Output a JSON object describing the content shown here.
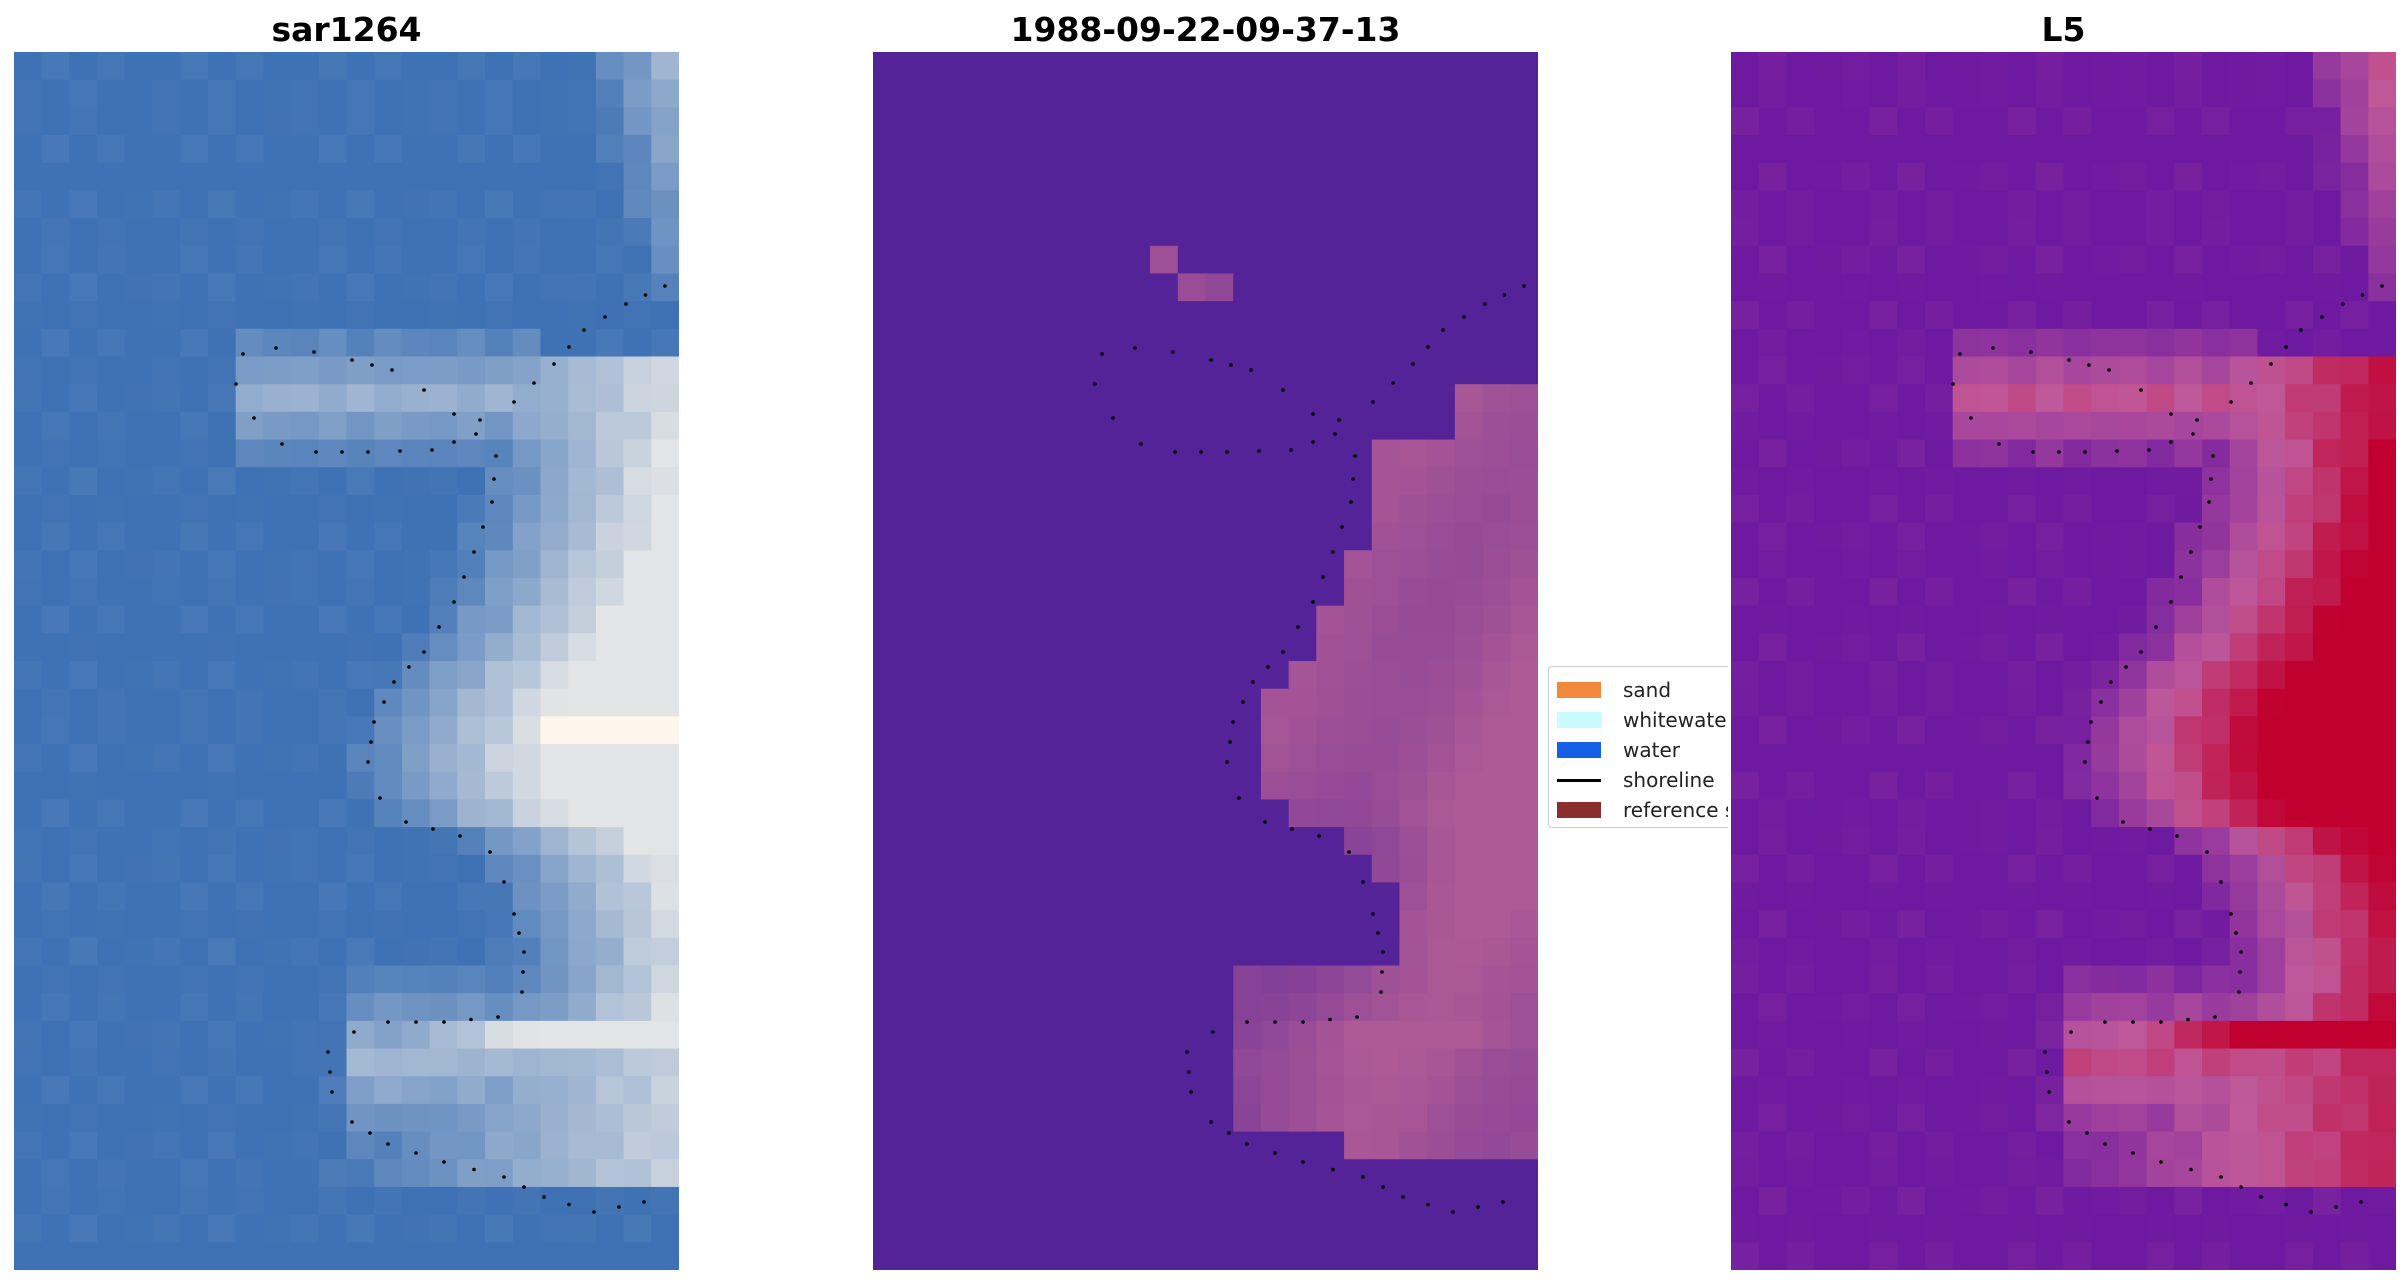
{
  "titles": {
    "left": "sar1264",
    "middle": "1988-09-22-09-37-13",
    "right": "L5"
  },
  "legend": [
    {
      "label": "sand",
      "color": "#f2883c",
      "kind": "patch"
    },
    {
      "label": "whitewater",
      "color": "#c8fcfc",
      "kind": "patch"
    },
    {
      "label": "water",
      "color": "#1560e6",
      "kind": "patch"
    },
    {
      "label": "shoreline",
      "color": "#000000",
      "kind": "line"
    },
    {
      "label": "reference s",
      "color": "#8b2e2e",
      "kind": "patch"
    }
  ],
  "colors": {
    "sar_base": "#3f72b4",
    "sar_bright": "#fff8ee",
    "class_water": "#542398",
    "class_sand": "#ae5a96",
    "l5_base": "#6e1aa0",
    "l5_peak": "#c0002e",
    "shoreline": "#000000"
  }
}
